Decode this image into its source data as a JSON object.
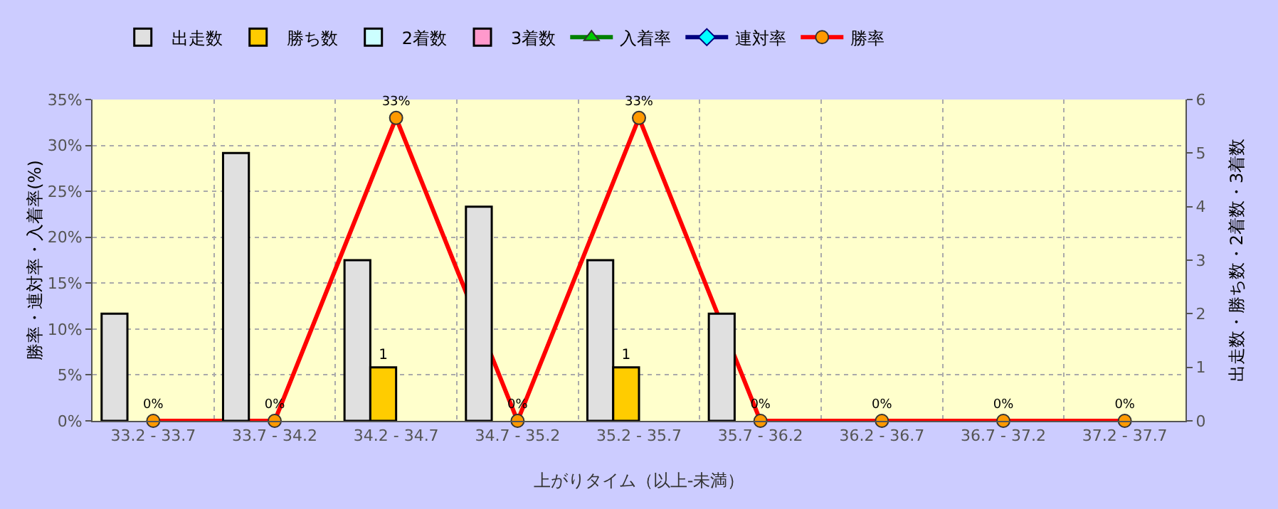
{
  "chart_data": {
    "type": "bar",
    "xlabel": "上がりタイム（以上-未満）",
    "ylabel": "勝率・連対率・入着率(%)",
    "y2label": "出走数・勝ち数・2着数・3着数",
    "categories": [
      "33.2 - 33.7",
      "33.7 - 34.2",
      "34.2 - 34.7",
      "34.7 - 35.2",
      "35.2 - 35.7",
      "35.7 - 36.2",
      "36.2 - 36.7",
      "36.7 - 37.2",
      "37.2 - 37.7"
    ],
    "series": [
      {
        "name": "出走数",
        "axis": "y2",
        "color": "#e0e0e0",
        "values": [
          2,
          5,
          3,
          4,
          3,
          2,
          null,
          null,
          null
        ]
      },
      {
        "name": "勝ち数",
        "axis": "y2",
        "color": "#ffcc00",
        "values": [
          null,
          null,
          1,
          null,
          1,
          null,
          null,
          null,
          null
        ],
        "value_labels": [
          null,
          null,
          "1",
          null,
          "1",
          null,
          null,
          null,
          null
        ]
      },
      {
        "name": "2着数",
        "axis": "y2",
        "color": "#ccffff",
        "values": [
          null,
          null,
          null,
          null,
          null,
          null,
          null,
          null,
          null
        ]
      },
      {
        "name": "3着数",
        "axis": "y2",
        "color": "#ff99cc",
        "values": [
          null,
          null,
          null,
          null,
          null,
          null,
          null,
          null,
          null
        ]
      },
      {
        "name": "入着率",
        "type": "line",
        "color": "#008000",
        "marker": "triangle",
        "values": [
          null,
          null,
          null,
          null,
          null,
          null,
          null,
          null,
          null
        ]
      },
      {
        "name": "連対率",
        "type": "line",
        "color": "#000080",
        "marker": "diamond",
        "values": [
          null,
          null,
          null,
          null,
          null,
          null,
          null,
          null,
          null
        ]
      },
      {
        "name": "勝率",
        "type": "line",
        "color": "#ff0000",
        "marker": "circle",
        "values": [
          0,
          0,
          33,
          0,
          33,
          0,
          0,
          0,
          0
        ],
        "value_labels": [
          "0%",
          "0%",
          "33%",
          "0%",
          "33%",
          "0%",
          "0%",
          "0%",
          "0%"
        ]
      }
    ],
    "ylim": [
      0,
      35
    ],
    "yticks": [
      {
        "value": 0,
        "label": "0%"
      },
      {
        "value": 5,
        "label": "5%"
      },
      {
        "value": 10,
        "label": "10%"
      },
      {
        "value": 15,
        "label": "15%"
      },
      {
        "value": 20,
        "label": "20%"
      },
      {
        "value": 25,
        "label": "25%"
      },
      {
        "value": 30,
        "label": "30%"
      },
      {
        "value": 35,
        "label": "35%"
      }
    ],
    "y2lim": [
      0,
      6
    ],
    "y2ticks": [
      0,
      1,
      2,
      3,
      4,
      5,
      6
    ],
    "grid": true,
    "legend": "top"
  }
}
